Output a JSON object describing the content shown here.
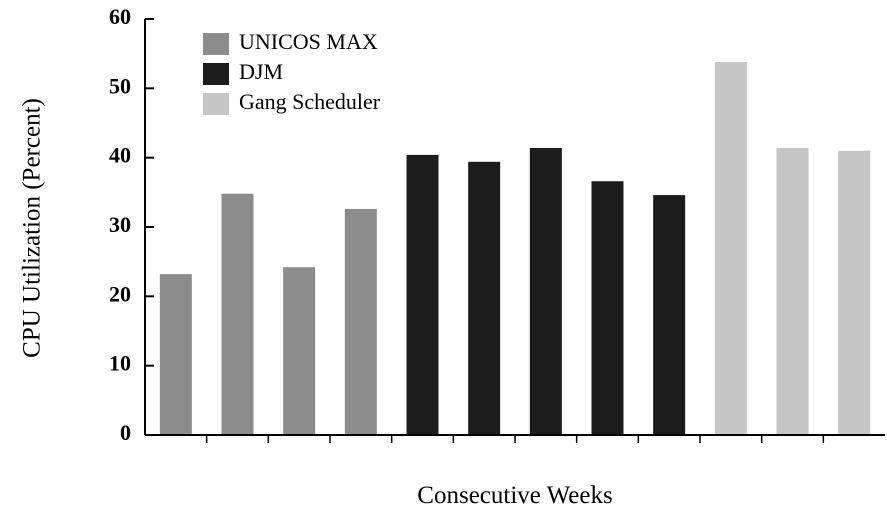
{
  "chart_data": {
    "type": "bar",
    "xlabel": "Consecutive Weeks",
    "ylabel": "CPU Utilization (Percent)",
    "categories": [
      null,
      null,
      null,
      null,
      null,
      null,
      null,
      null,
      null,
      null,
      null,
      null
    ],
    "series": [
      {
        "name": "UNICOS MAX",
        "color": "#8c8c8c",
        "values": [
          23.2,
          34.8,
          24.2,
          32.6,
          null,
          null,
          null,
          null,
          null,
          null,
          null,
          null
        ]
      },
      {
        "name": "DJM",
        "color": "#1c1c1c",
        "values": [
          null,
          null,
          null,
          null,
          40.4,
          39.4,
          41.4,
          36.6,
          34.6,
          null,
          null,
          null
        ]
      },
      {
        "name": "Gang Scheduler",
        "color": "#c6c6c6",
        "values": [
          null,
          null,
          null,
          null,
          null,
          null,
          null,
          null,
          null,
          53.8,
          41.4,
          41.0
        ]
      }
    ],
    "ylim": [
      0,
      60
    ],
    "yticks": [
      0,
      10,
      20,
      30,
      40,
      50,
      60
    ],
    "legend": "upper-left"
  }
}
